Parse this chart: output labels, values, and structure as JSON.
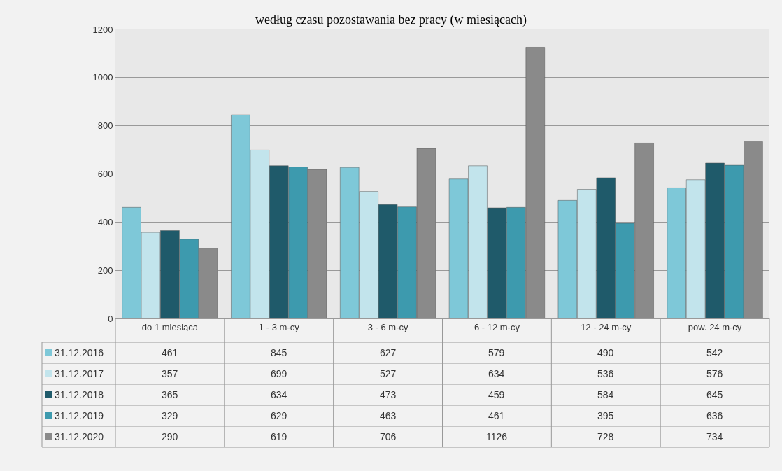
{
  "chart_data": {
    "type": "bar",
    "title": "według czasu pozostawania bez pracy (w miesiącach)",
    "categories": [
      "do 1 miesiąca",
      "1 - 3 m-cy",
      "3 - 6 m-cy",
      "6 - 12 m-cy",
      "12 - 24 m-cy",
      "pow. 24 m-cy"
    ],
    "series": [
      {
        "name": "31.12.2016",
        "color": "#7ec8d8",
        "values": [
          461,
          845,
          627,
          579,
          490,
          542
        ]
      },
      {
        "name": "31.12.2017",
        "color": "#c2e4ec",
        "values": [
          357,
          699,
          527,
          634,
          536,
          576
        ]
      },
      {
        "name": "31.12.2018",
        "color": "#1f5a6a",
        "values": [
          365,
          634,
          473,
          459,
          584,
          645
        ]
      },
      {
        "name": "31.12.2019",
        "color": "#3d9aae",
        "values": [
          329,
          629,
          463,
          461,
          395,
          636
        ]
      },
      {
        "name": "31.12.2020",
        "color": "#8a8a8a",
        "values": [
          290,
          619,
          706,
          1126,
          728,
          734
        ]
      }
    ],
    "ylim": [
      0,
      1200
    ],
    "yticks": [
      0,
      200,
      400,
      600,
      800,
      1000,
      1200
    ],
    "grid": "y",
    "legend": "bottom",
    "data_labels": true
  }
}
